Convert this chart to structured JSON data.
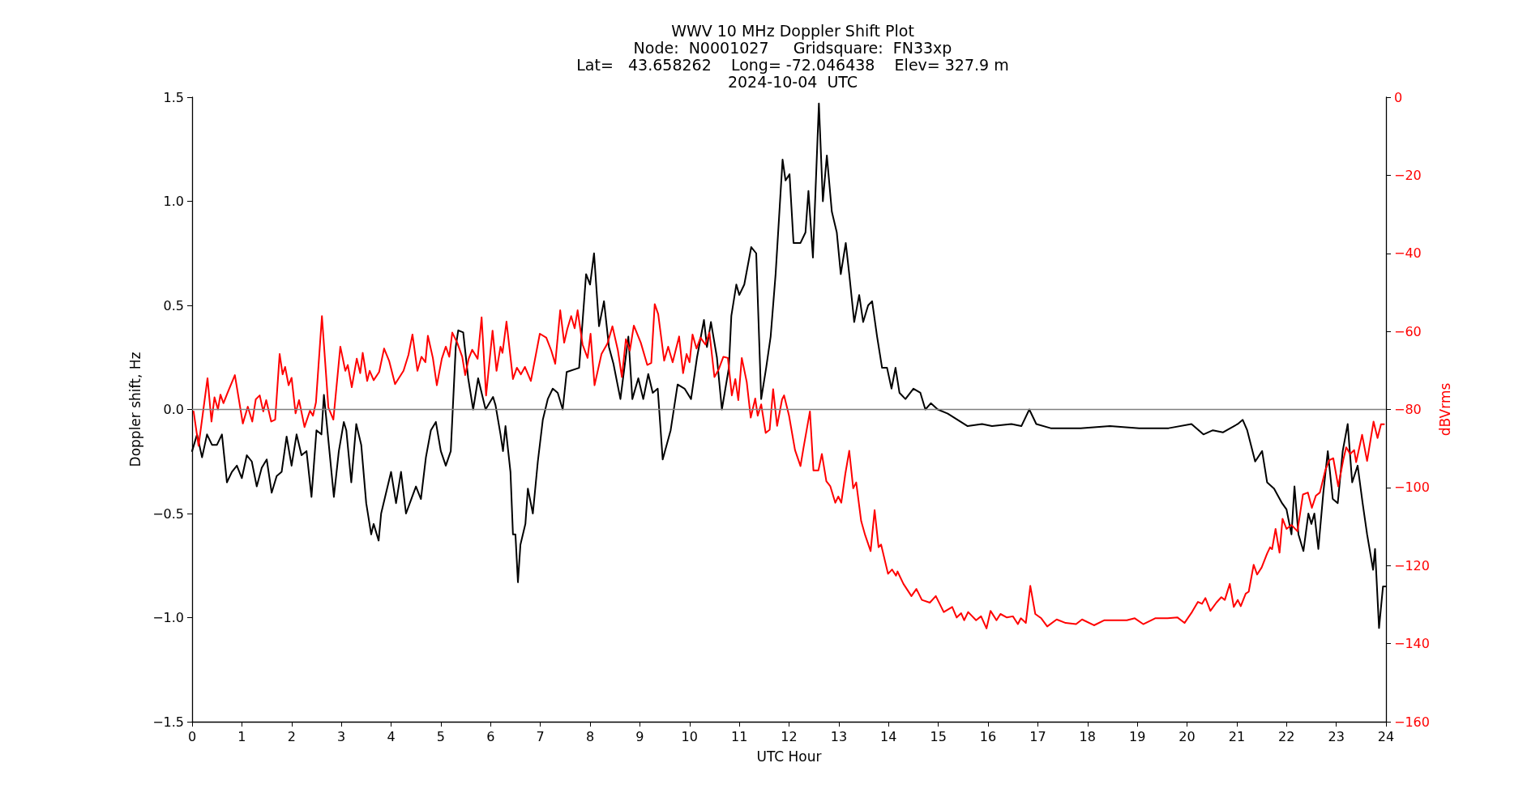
{
  "chart_data": {
    "type": "line",
    "title": "WWV 10 MHz Doppler Shift Plot\nNode:  N0001027     Gridsquare:  FN33xp\nLat=   43.658262    Long= -72.046438    Elev= 327.9 m\n2024-10-04  UTC",
    "xlabel": "UTC Hour",
    "ylabel": "Doppler shift, Hz",
    "y2label": "dBVrms",
    "xlim": [
      0,
      24
    ],
    "xticks": [
      0,
      1,
      2,
      3,
      4,
      5,
      6,
      7,
      8,
      9,
      10,
      11,
      12,
      13,
      14,
      15,
      16,
      17,
      18,
      19,
      20,
      21,
      22,
      23,
      24
    ],
    "ylim": [
      -1.5,
      1.5
    ],
    "yticks": [
      {
        "value": -1.5,
        "label": "−1.5"
      },
      {
        "value": -1,
        "label": "−1.0"
      },
      {
        "value": -0.5,
        "label": "−0.5"
      },
      {
        "value": 0,
        "label": "0.0"
      },
      {
        "value": 0.5,
        "label": "0.5"
      },
      {
        "value": 1,
        "label": "1.0"
      },
      {
        "value": 1.5,
        "label": "1.5"
      }
    ],
    "y2lim": [
      -160,
      0
    ],
    "y2ticks": [
      {
        "value": -160,
        "label": "−160"
      },
      {
        "value": -140,
        "label": "−140"
      },
      {
        "value": -120,
        "label": "−120"
      },
      {
        "value": -100,
        "label": "−100"
      },
      {
        "value": -80,
        "label": "−80"
      },
      {
        "value": -60,
        "label": "−60"
      },
      {
        "value": -40,
        "label": "−40"
      },
      {
        "value": -20,
        "label": "−20"
      },
      0
    ],
    "grid": false,
    "marker": "none",
    "line_style": "solid",
    "ref_lines": [
      {
        "axis": "y",
        "value": 0,
        "color": "#808080"
      }
    ],
    "series": [
      {
        "color": "#000000",
        "x": [
          0,
          0.1,
          0.2,
          0.3,
          0.4,
          0.5,
          0.6,
          0.7,
          0.8,
          0.9,
          1.0,
          1.1,
          1.2,
          1.3,
          1.4,
          1.5,
          1.6,
          1.7,
          1.8,
          1.9,
          2.0,
          2.1,
          2.2,
          2.3,
          2.4,
          2.5,
          2.6,
          2.65,
          2.7,
          2.85,
          2.95,
          3.05,
          3.1,
          3.2,
          3.3,
          3.4,
          3.5,
          3.6,
          3.65,
          3.75,
          3.8,
          3.9,
          4.0,
          4.1,
          4.2,
          4.3,
          4.5,
          4.6,
          4.7,
          4.8,
          4.9,
          5.0,
          5.1,
          5.2,
          5.3,
          5.35,
          5.45,
          5.55,
          5.65,
          5.75,
          5.9,
          6.05,
          6.1,
          6.2,
          6.25,
          6.3,
          6.4,
          6.45,
          6.5,
          6.55,
          6.6,
          6.7,
          6.75,
          6.85,
          6.95,
          7.05,
          7.15,
          7.25,
          7.35,
          7.45,
          7.53,
          7.78,
          7.92,
          8.0,
          8.08,
          8.18,
          8.28,
          8.38,
          8.47,
          8.61,
          8.77,
          8.85,
          8.97,
          9.07,
          9.17,
          9.26,
          9.36,
          9.46,
          9.62,
          9.76,
          9.9,
          10.03,
          10.15,
          10.29,
          10.35,
          10.43,
          10.55,
          10.65,
          10.79,
          10.84,
          10.94,
          11.0,
          11.1,
          11.24,
          11.34,
          11.44,
          11.54,
          11.63,
          11.73,
          11.87,
          11.93,
          12.01,
          12.09,
          12.23,
          12.33,
          12.39,
          12.48,
          12.6,
          12.68,
          12.76,
          12.86,
          12.96,
          13.04,
          13.14,
          13.21,
          13.31,
          13.41,
          13.49,
          13.59,
          13.67,
          13.77,
          13.87,
          13.97,
          14.06,
          14.14,
          14.22,
          14.34,
          14.5,
          14.64,
          14.74,
          14.85,
          14.99,
          15.19,
          15.39,
          15.59,
          15.88,
          16.08,
          16.47,
          16.67,
          16.83,
          16.97,
          17.26,
          17.86,
          18.45,
          19.04,
          19.63,
          20.09,
          20.33,
          20.52,
          20.72,
          21.02,
          21.12,
          21.21,
          21.37,
          21.51,
          21.61,
          21.75,
          21.91,
          22.0,
          22.1,
          22.16,
          22.24,
          22.34,
          22.44,
          22.5,
          22.56,
          22.64,
          22.74,
          22.83,
          22.93,
          23.03,
          23.13,
          23.23,
          23.32,
          23.43,
          23.53,
          23.62,
          23.74,
          23.78,
          23.86,
          23.94,
          24.0
        ],
        "values": [
          -0.2,
          -0.12,
          -0.23,
          -0.12,
          -0.17,
          -0.17,
          -0.12,
          -0.35,
          -0.3,
          -0.27,
          -0.33,
          -0.22,
          -0.25,
          -0.37,
          -0.28,
          -0.24,
          -0.4,
          -0.32,
          -0.3,
          -0.13,
          -0.27,
          -0.12,
          -0.22,
          -0.2,
          -0.42,
          -0.1,
          -0.12,
          0.07,
          -0.05,
          -0.42,
          -0.2,
          -0.06,
          -0.1,
          -0.35,
          -0.07,
          -0.17,
          -0.45,
          -0.6,
          -0.55,
          -0.63,
          -0.5,
          -0.4,
          -0.3,
          -0.45,
          -0.3,
          -0.5,
          -0.37,
          -0.43,
          -0.23,
          -0.1,
          -0.06,
          -0.2,
          -0.27,
          -0.2,
          0.3,
          0.38,
          0.37,
          0.15,
          0.0,
          0.15,
          0.0,
          0.06,
          0.02,
          -0.12,
          -0.2,
          -0.08,
          -0.3,
          -0.6,
          -0.6,
          -0.83,
          -0.65,
          -0.55,
          -0.38,
          -0.5,
          -0.25,
          -0.05,
          0.05,
          0.1,
          0.08,
          0.0,
          0.18,
          0.2,
          0.65,
          0.6,
          0.75,
          0.4,
          0.52,
          0.3,
          0.22,
          0.05,
          0.35,
          0.05,
          0.15,
          0.05,
          0.17,
          0.08,
          0.1,
          -0.24,
          -0.1,
          0.12,
          0.1,
          0.05,
          0.25,
          0.43,
          0.3,
          0.42,
          0.25,
          0.0,
          0.2,
          0.45,
          0.6,
          0.55,
          0.6,
          0.78,
          0.75,
          0.05,
          0.2,
          0.35,
          0.65,
          1.2,
          1.1,
          1.13,
          0.8,
          0.8,
          0.85,
          1.05,
          0.73,
          1.47,
          1.0,
          1.22,
          0.95,
          0.85,
          0.65,
          0.8,
          0.65,
          0.42,
          0.55,
          0.42,
          0.5,
          0.52,
          0.35,
          0.2,
          0.2,
          0.1,
          0.2,
          0.08,
          0.05,
          0.1,
          0.08,
          0.0,
          0.03,
          0.0,
          -0.02,
          -0.05,
          -0.08,
          -0.07,
          -0.08,
          -0.07,
          -0.08,
          0.0,
          -0.07,
          -0.09,
          -0.09,
          -0.08,
          -0.09,
          -0.09,
          -0.07,
          -0.12,
          -0.1,
          -0.11,
          -0.07,
          -0.05,
          -0.1,
          -0.25,
          -0.2,
          -0.35,
          -0.38,
          -0.45,
          -0.48,
          -0.6,
          -0.37,
          -0.6,
          -0.68,
          -0.5,
          -0.55,
          -0.5,
          -0.67,
          -0.4,
          -0.2,
          -0.43,
          -0.45,
          -0.2,
          -0.07,
          -0.35,
          -0.27,
          -0.45,
          -0.6,
          -0.77,
          -0.67,
          -1.05,
          -0.85,
          -0.85
        ]
      },
      {
        "color": "#ff0000",
        "axis": "y2",
        "x": [
          0.03,
          0.13,
          0.31,
          0.39,
          0.45,
          0.52,
          0.57,
          0.63,
          0.71,
          0.86,
          1.02,
          1.12,
          1.21,
          1.28,
          1.36,
          1.43,
          1.49,
          1.59,
          1.67,
          1.76,
          1.82,
          1.87,
          1.94,
          2.0,
          2.08,
          2.15,
          2.26,
          2.37,
          2.43,
          2.49,
          2.61,
          2.74,
          2.84,
          2.98,
          3.08,
          3.13,
          3.21,
          3.31,
          3.38,
          3.43,
          3.52,
          3.57,
          3.65,
          3.76,
          3.86,
          3.96,
          4.08,
          4.25,
          4.35,
          4.43,
          4.53,
          4.61,
          4.69,
          4.74,
          4.84,
          4.92,
          5.02,
          5.1,
          5.17,
          5.23,
          5.33,
          5.43,
          5.49,
          5.56,
          5.63,
          5.74,
          5.82,
          5.91,
          6.04,
          6.12,
          6.2,
          6.24,
          6.32,
          6.45,
          6.53,
          6.61,
          6.69,
          6.81,
          6.99,
          7.12,
          7.22,
          7.3,
          7.4,
          7.48,
          7.54,
          7.62,
          7.69,
          7.75,
          7.85,
          7.95,
          8.01,
          8.09,
          8.23,
          8.35,
          8.45,
          8.56,
          8.64,
          8.72,
          8.8,
          8.88,
          9.02,
          9.15,
          9.23,
          9.3,
          9.37,
          9.49,
          9.57,
          9.66,
          9.79,
          9.87,
          9.94,
          10.0,
          10.06,
          10.14,
          10.22,
          10.32,
          10.4,
          10.5,
          10.58,
          10.68,
          10.77,
          10.85,
          10.92,
          10.98,
          11.05,
          11.15,
          11.23,
          11.32,
          11.37,
          11.44,
          11.53,
          11.61,
          11.68,
          11.76,
          11.86,
          11.9,
          12.0,
          12.12,
          12.23,
          12.29,
          12.42,
          12.49,
          12.59,
          12.66,
          12.75,
          12.83,
          12.93,
          12.99,
          13.05,
          13.13,
          13.21,
          13.29,
          13.35,
          13.45,
          13.53,
          13.64,
          13.72,
          13.8,
          13.85,
          13.99,
          14.07,
          14.15,
          14.18,
          14.3,
          14.46,
          14.56,
          14.67,
          14.83,
          14.95,
          15.11,
          15.28,
          15.37,
          15.46,
          15.52,
          15.6,
          15.76,
          15.86,
          15.97,
          16.05,
          16.17,
          16.25,
          16.38,
          16.5,
          16.6,
          16.66,
          16.76,
          16.85,
          16.95,
          17.07,
          17.19,
          17.38,
          17.56,
          17.77,
          17.89,
          18.13,
          18.34,
          18.79,
          18.95,
          19.12,
          19.36,
          19.61,
          19.81,
          19.95,
          20.1,
          20.22,
          20.3,
          20.37,
          20.47,
          20.59,
          20.69,
          20.76,
          20.86,
          20.94,
          21.02,
          21.08,
          21.18,
          21.24,
          21.34,
          21.41,
          21.5,
          21.61,
          21.67,
          21.71,
          21.78,
          21.86,
          21.92,
          22.0,
          22.1,
          22.22,
          22.33,
          22.43,
          22.51,
          22.59,
          22.67,
          22.78,
          22.86,
          22.94,
          23.04,
          23.14,
          23.2,
          23.28,
          23.36,
          23.4,
          23.52,
          23.62,
          23.75,
          23.83,
          23.9,
          23.96
        ],
        "values": [
          -80.5,
          -89.3,
          -72.0,
          -83.1,
          -76.9,
          -80,
          -76.2,
          -78.4,
          -75.8,
          -71.2,
          -83.6,
          -79.3,
          -83.1,
          -77.4,
          -76.4,
          -80.5,
          -77.6,
          -83.1,
          -82.6,
          -65.8,
          -71.0,
          -69.1,
          -73.8,
          -71.9,
          -81.0,
          -77.6,
          -84.5,
          -80.3,
          -81.6,
          -78.2,
          -56.1,
          -79.5,
          -82.6,
          -63.9,
          -70.1,
          -68.6,
          -74.3,
          -67.0,
          -70.7,
          -65.5,
          -72.7,
          -70.1,
          -72.5,
          -70.4,
          -64.4,
          -67.5,
          -73.5,
          -70.1,
          -66.0,
          -60.8,
          -70.1,
          -66.5,
          -67.9,
          -61.1,
          -66.8,
          -73.8,
          -67.0,
          -63.9,
          -66.5,
          -60.3,
          -62.9,
          -66.5,
          -71.2,
          -67.0,
          -64.7,
          -67.0,
          -56.4,
          -76.4,
          -59.8,
          -70.1,
          -63.9,
          -65.5,
          -57.5,
          -72.2,
          -69.3,
          -71.0,
          -69.1,
          -72.7,
          -60.6,
          -61.6,
          -64.9,
          -68.3,
          -54.6,
          -62.9,
          -59.5,
          -56.1,
          -59.2,
          -54.6,
          -63.4,
          -66.8,
          -60.6,
          -73.8,
          -65.8,
          -63.1,
          -58.7,
          -64.9,
          -71.7,
          -62.0,
          -64.9,
          -58.5,
          -62.9,
          -68.6,
          -68.1,
          -53.0,
          -55.6,
          -67.5,
          -63.9,
          -67.9,
          -61.3,
          -70.7,
          -65.8,
          -67.9,
          -60.8,
          -64.4,
          -61.6,
          -63.4,
          -60.3,
          -71.7,
          -69.9,
          -66.5,
          -66.8,
          -76.4,
          -72.2,
          -77.6,
          -66.8,
          -73.0,
          -82.1,
          -77.2,
          -81.6,
          -78.7,
          -86.0,
          -85.2,
          -74.8,
          -84.2,
          -77.4,
          -76.4,
          -81.6,
          -90.4,
          -94.5,
          -89.9,
          -80.5,
          -95.6,
          -95.6,
          -91.4,
          -98.4,
          -99.7,
          -103.9,
          -102.3,
          -103.9,
          -96.6,
          -90.6,
          -100.2,
          -98.7,
          -108.6,
          -112.2,
          -116.3,
          -105.8,
          -115.3,
          -114.6,
          -122.1,
          -121.0,
          -122.6,
          -121.5,
          -124.7,
          -127.8,
          -126.0,
          -128.8,
          -129.5,
          -127.8,
          -131.9,
          -130.6,
          -133.3,
          -132.2,
          -134.0,
          -131.9,
          -134.0,
          -133.0,
          -136.1,
          -131.6,
          -134.0,
          -132.4,
          -133.3,
          -133.0,
          -135.0,
          -133.5,
          -134.7,
          -125.2,
          -132.4,
          -133.5,
          -135.6,
          -133.8,
          -134.7,
          -135.0,
          -133.8,
          -135.3,
          -134.0,
          -134.0,
          -133.5,
          -135.0,
          -133.5,
          -133.5,
          -133.3,
          -134.7,
          -131.9,
          -129.3,
          -129.8,
          -128.3,
          -131.6,
          -129.5,
          -128.1,
          -128.8,
          -124.7,
          -130.6,
          -128.8,
          -130.4,
          -127.2,
          -126.7,
          -119.8,
          -122.3,
          -120.5,
          -116.9,
          -115.3,
          -115.8,
          -110.6,
          -116.7,
          -108.0,
          -110.6,
          -109.6,
          -111.2,
          -101.8,
          -101.3,
          -105.2,
          -102.1,
          -101.3,
          -95.6,
          -93.0,
          -92.5,
          -99.7,
          -93.0,
          -89.7,
          -91.4,
          -90.4,
          -93.5,
          -86.5,
          -93.2,
          -83.1,
          -87.3,
          -83.8,
          -83.8
        ]
      }
    ]
  }
}
